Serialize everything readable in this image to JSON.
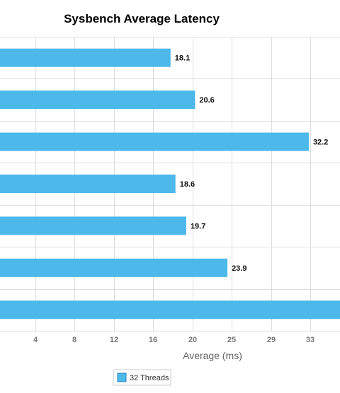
{
  "chart_data": {
    "type": "bar",
    "orientation": "horizontal",
    "title": "Sysbench Average Latency",
    "xlabel": "Average (ms)",
    "ylabel": "",
    "x_tick_labels": [
      "4",
      "8",
      "12",
      "16",
      "20",
      "25",
      "29",
      "33"
    ],
    "series": [
      {
        "name": "32 Threads",
        "color": "#4db8ea",
        "values": [
          18.1,
          20.6,
          32.2,
          18.6,
          19.7,
          23.9,
          38.0
        ],
        "labels": [
          "18.1",
          "20.6",
          "32.2",
          "18.6",
          "19.7",
          "23.9",
          ""
        ]
      }
    ],
    "grid": true,
    "legend": "bottom"
  }
}
